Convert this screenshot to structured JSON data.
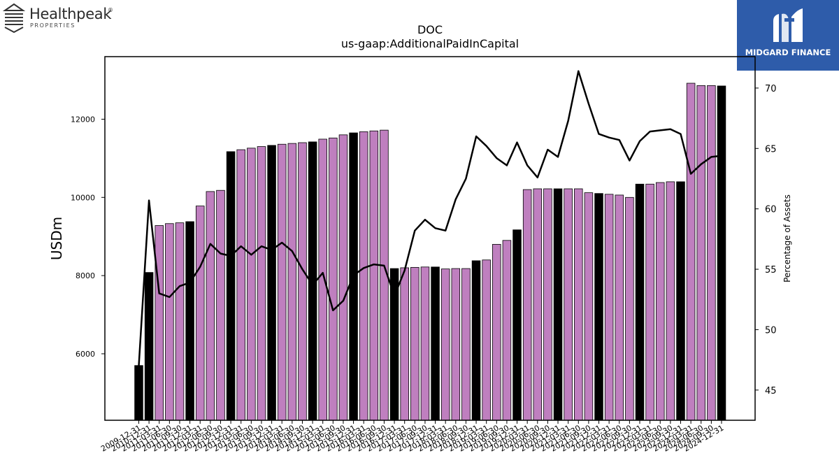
{
  "logos": {
    "left": {
      "name": "Healthpeak",
      "registered": "®",
      "subtitle": "PROPERTIES"
    },
    "right": {
      "name": "MIDGARD FINANCE",
      "color": "#2e5caa"
    }
  },
  "chart_data": {
    "type": "bar",
    "title": "DOC",
    "subtitle": "us-gaap:AdditionalPaidInCapital",
    "ylabel": "USDm",
    "y2label": "Percentage of Assets",
    "ylim": [
      4300,
      13600
    ],
    "y2lim": [
      42.5,
      72.6
    ],
    "yticks": [
      6000,
      8000,
      10000,
      12000
    ],
    "y2ticks": [
      45,
      50,
      55,
      60,
      65,
      70
    ],
    "colors": {
      "bar_q4": "#000000",
      "bar_other": "#bf7fbf",
      "line": "#000000"
    },
    "categories": [
      "2009-12-31",
      "2010-12-31",
      "2011-03-31",
      "2011-06-30",
      "2011-09-30",
      "2011-12-31",
      "2012-03-31",
      "2012-06-30",
      "2012-09-30",
      "2012-12-31",
      "2013-03-31",
      "2013-06-30",
      "2013-09-30",
      "2013-12-31",
      "2014-03-31",
      "2014-06-30",
      "2014-09-30",
      "2014-12-31",
      "2015-03-31",
      "2015-06-30",
      "2015-09-30",
      "2015-12-31",
      "2016-03-31",
      "2016-06-30",
      "2016-09-30",
      "2016-12-31",
      "2017-03-31",
      "2017-06-30",
      "2017-09-30",
      "2017-12-31",
      "2018-03-31",
      "2018-06-30",
      "2018-09-30",
      "2018-12-31",
      "2019-03-31",
      "2019-06-30",
      "2019-09-30",
      "2019-12-31",
      "2020-03-31",
      "2020-06-30",
      "2020-09-30",
      "2020-12-31",
      "2021-03-31",
      "2021-06-30",
      "2021-09-30",
      "2021-12-31",
      "2022-03-31",
      "2022-06-30",
      "2022-09-30",
      "2022-12-31",
      "2023-03-31",
      "2023-06-30",
      "2023-09-30",
      "2023-12-31",
      "2024-03-31",
      "2024-06-30",
      "2024-09-30",
      "2024-12-31"
    ],
    "series": [
      {
        "type": "bar",
        "axis": "left",
        "values": [
          5700,
          8080,
          9280,
          9330,
          9350,
          9380,
          9780,
          10150,
          10180,
          11170,
          11220,
          11260,
          11300,
          11330,
          11360,
          11380,
          11400,
          11420,
          11490,
          11520,
          11600,
          11650,
          11680,
          11700,
          11720,
          8180,
          8200,
          8210,
          8220,
          8220,
          8170,
          8180,
          8180,
          8380,
          8400,
          8800,
          8900,
          9170,
          10200,
          10220,
          10220,
          10220,
          10220,
          10220,
          10120,
          10100,
          10080,
          10060,
          10000,
          10340,
          10340,
          10380,
          10400,
          10400,
          12920,
          12860,
          12860,
          12850
        ]
      },
      {
        "type": "line",
        "axis": "right",
        "values": [
          47.0,
          60.7,
          53.0,
          52.7,
          53.6,
          53.9,
          55.2,
          57.1,
          56.3,
          56.1,
          56.9,
          56.2,
          56.9,
          56.6,
          57.2,
          56.5,
          55.0,
          53.7,
          54.7,
          51.6,
          52.4,
          54.5,
          55.1,
          55.4,
          55.3,
          52.8,
          54.9,
          58.2,
          59.1,
          58.4,
          58.2,
          60.8,
          62.5,
          66.0,
          65.2,
          64.2,
          63.6,
          65.5,
          63.6,
          62.6,
          64.9,
          64.3,
          67.3,
          71.4,
          68.7,
          66.2,
          65.9,
          65.7,
          64.0,
          65.6,
          66.4,
          66.5,
          66.6,
          66.2,
          62.9,
          63.7,
          64.3,
          64.4
        ]
      }
    ]
  }
}
